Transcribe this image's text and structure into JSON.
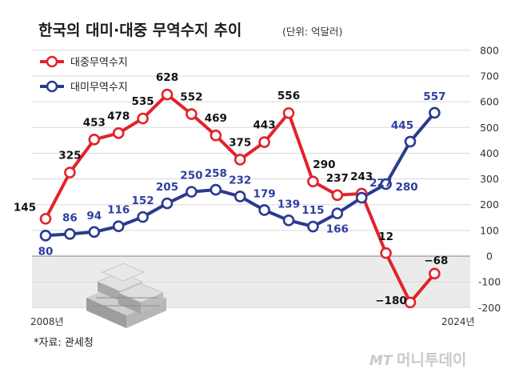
{
  "title": "한국의 대미·대중 무역수지 추이",
  "unit": "(단위: 억달러)",
  "source": "*자료: 관세청",
  "watermark": {
    "mark": "MT",
    "name": "머니투데이"
  },
  "colors": {
    "china": "#e1232b",
    "usa": "#2b3a8f",
    "usa_label": "#2f3fa0",
    "grid": "#d9d9d9",
    "zero_line": "#9a9a9a",
    "negative_band": "#ebebeb"
  },
  "chart_data": {
    "type": "line",
    "x": [
      2008,
      2009,
      2010,
      2011,
      2012,
      2013,
      2014,
      2015,
      2016,
      2017,
      2018,
      2019,
      2020,
      2021,
      2022,
      2023,
      2024
    ],
    "x_tick_labels": {
      "first": "2008년",
      "last": "2024년"
    },
    "ylim": [
      -200,
      800
    ],
    "y_ticks": [
      -200,
      -100,
      0,
      100,
      200,
      300,
      400,
      500,
      600,
      700,
      800
    ],
    "y_tick_labels": [
      "-200",
      "-100",
      "0",
      "100",
      "200",
      "300",
      "400",
      "500",
      "600",
      "700",
      "800"
    ],
    "grid": true,
    "legend_position": "top-left",
    "series": [
      {
        "key": "china",
        "name": "대중무역수지",
        "values": [
          145,
          325,
          453,
          478,
          535,
          628,
          552,
          469,
          375,
          443,
          556,
          290,
          237,
          243,
          12,
          -180,
          -68
        ],
        "labels": [
          "145",
          "325",
          "453",
          "478",
          "535",
          "628",
          "552",
          "469",
          "375",
          "443",
          "556",
          "290",
          "237",
          "243",
          "12",
          "−180",
          "−68"
        ]
      },
      {
        "key": "usa",
        "name": "대미무역수지",
        "values": [
          80,
          86,
          94,
          116,
          152,
          205,
          250,
          258,
          232,
          179,
          139,
          115,
          166,
          227,
          280,
          445,
          557
        ],
        "labels": [
          "80",
          "86",
          "94",
          "116",
          "152",
          "205",
          "250",
          "258",
          "232",
          "179",
          "139",
          "115",
          "166",
          "227",
          "280",
          "445",
          "557"
        ]
      }
    ]
  }
}
